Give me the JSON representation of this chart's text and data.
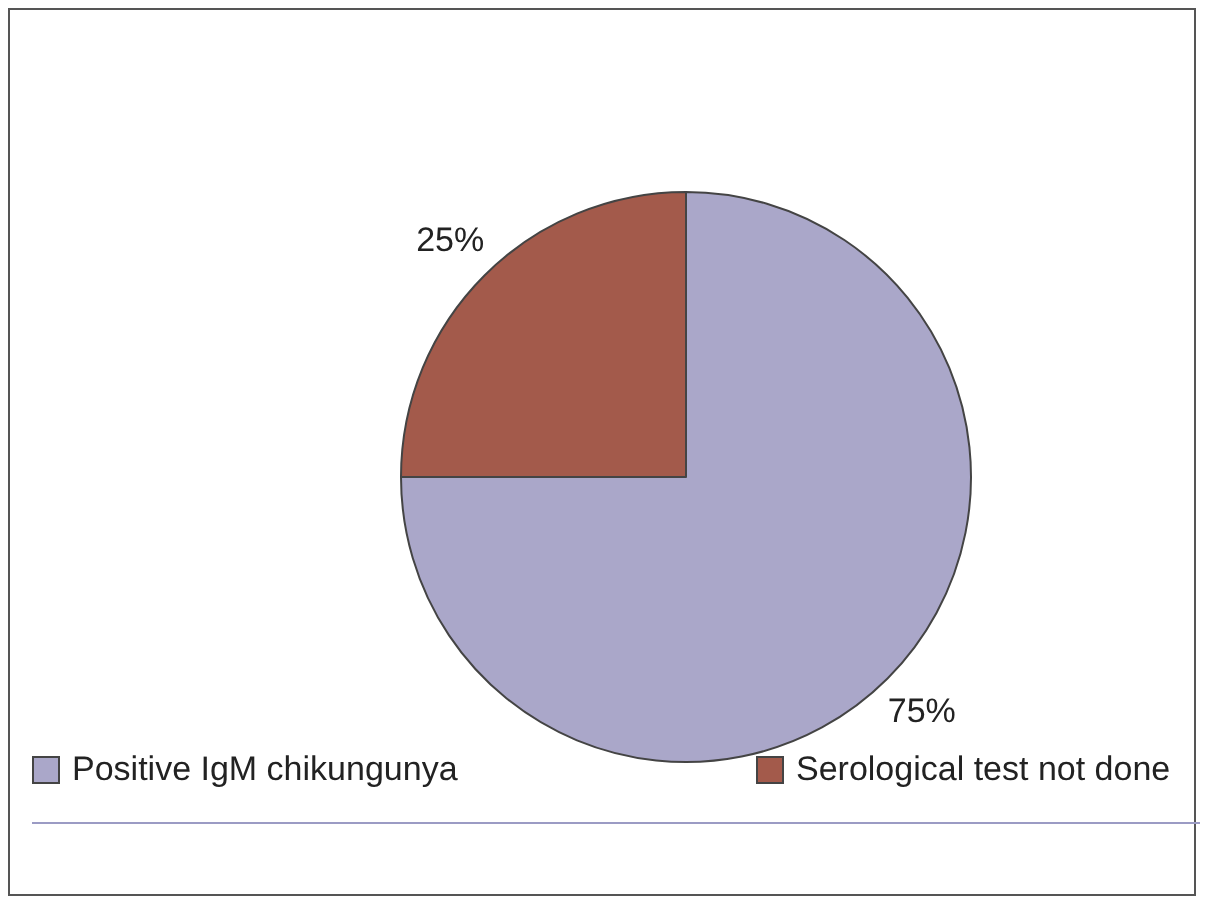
{
  "chart_data": {
    "type": "pie",
    "categories": [
      "Positive IgM chikungunya",
      "Serological test not done"
    ],
    "values": [
      75,
      25
    ],
    "colors": [
      "#aaa7c9",
      "#a35a4b"
    ],
    "value_labels": [
      "75%",
      "25%"
    ],
    "legend": "bottom"
  }
}
